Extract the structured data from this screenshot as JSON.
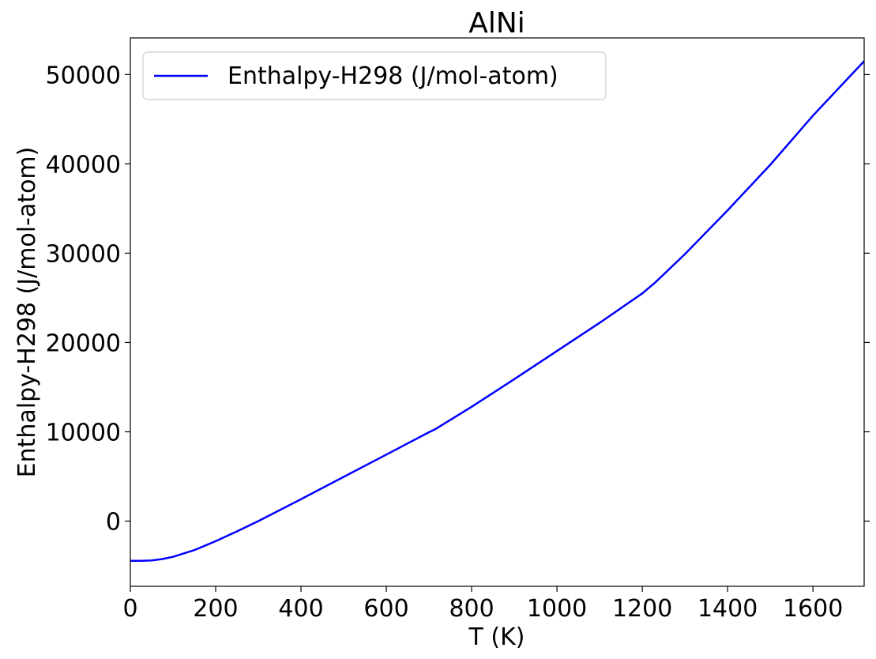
{
  "chart_data": {
    "type": "line",
    "title": "AlNi",
    "xlabel": "T (K)",
    "ylabel": "Enthalpy-H298 (J/mol-atom)",
    "xlim": [
      0,
      1720
    ],
    "ylim": [
      -7300,
      54100
    ],
    "xticks": [
      0,
      200,
      400,
      600,
      800,
      1000,
      1200,
      1400,
      1600
    ],
    "yticks": [
      0,
      10000,
      20000,
      30000,
      40000,
      50000
    ],
    "grid": false,
    "legend_position": "top-left",
    "series": [
      {
        "name": "Enthalpy-H298 (J/mol-atom)",
        "color": "#0000ff",
        "x": [
          0,
          25,
          50,
          75,
          100,
          150,
          200,
          250,
          300,
          400,
          500,
          600,
          700,
          715,
          800,
          900,
          1000,
          1100,
          1200,
          1230,
          1300,
          1400,
          1500,
          1600,
          1720
        ],
        "y": [
          -4450,
          -4450,
          -4400,
          -4250,
          -4000,
          -3250,
          -2250,
          -1150,
          0,
          2450,
          4950,
          7450,
          9950,
          10300,
          12800,
          15900,
          19050,
          22200,
          25500,
          26700,
          29900,
          34800,
          39900,
          45400,
          51500
        ]
      }
    ]
  }
}
